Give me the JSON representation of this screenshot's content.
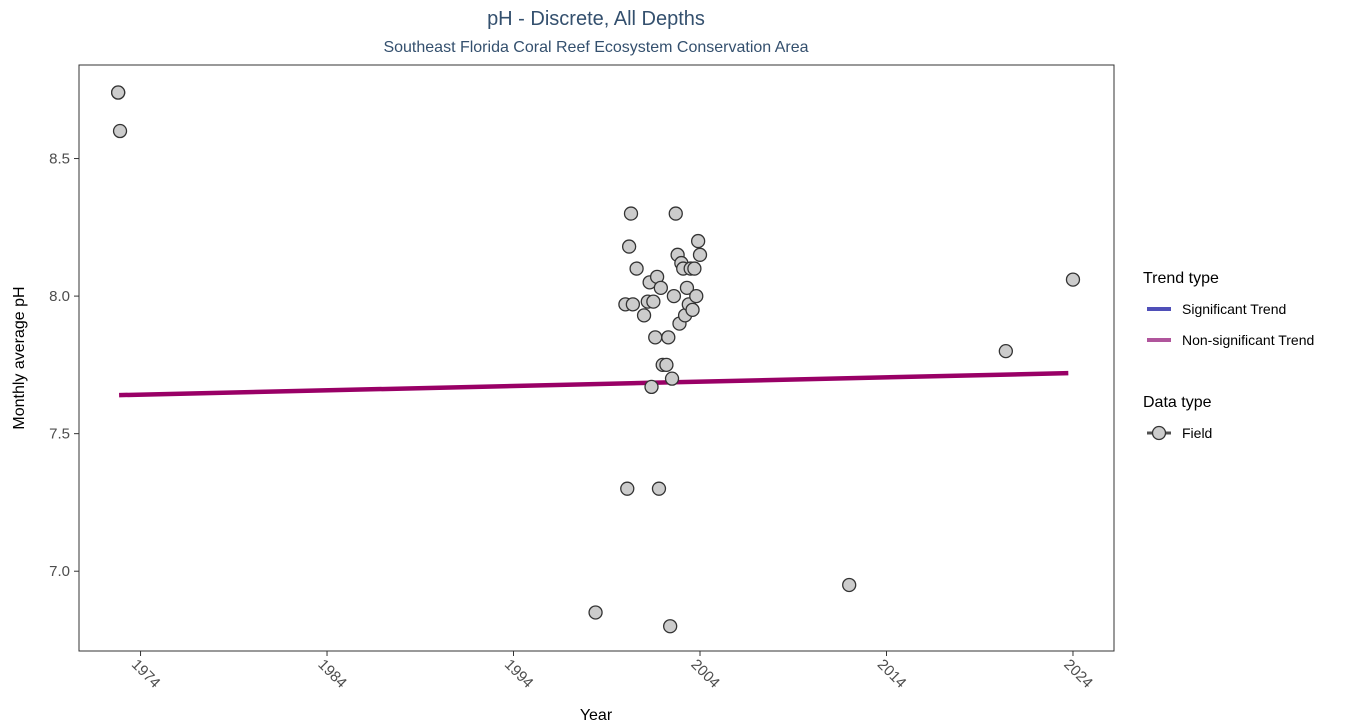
{
  "chart_data": {
    "type": "scatter",
    "title": "pH - Discrete, All Depths",
    "subtitle": "Southeast Florida Coral Reef Ecosystem Conservation Area",
    "xlabel": "Year",
    "ylabel": "Monthly average pH",
    "xlim": [
      1970.7,
      2026.2
    ],
    "ylim": [
      6.71,
      8.84
    ],
    "x_ticks": [
      1974,
      1984,
      1994,
      2004,
      2014,
      2024
    ],
    "x_tick_labels": [
      "1974",
      "1984",
      "1994",
      "2004",
      "2014",
      "2024"
    ],
    "y_ticks": [
      7.0,
      7.5,
      8.0,
      8.5
    ],
    "y_tick_labels": [
      "7.0",
      "7.5",
      "8.0",
      "8.5"
    ],
    "grid": false,
    "trend_line": {
      "type": "Non-significant Trend",
      "color": "#990066",
      "x": [
        1972.85,
        2023.75
      ],
      "y": [
        7.64,
        7.72
      ]
    },
    "points": {
      "series": "Field",
      "fill": "#cccccc",
      "stroke": "#333333",
      "x": [
        1972.8,
        1972.8,
        1972.9,
        1998.4,
        2000.0,
        2000.1,
        2000.2,
        2000.3,
        2000.4,
        2000.6,
        2001.0,
        2001.2,
        2001.3,
        2001.4,
        2001.5,
        2001.6,
        2001.7,
        2001.8,
        2001.9,
        2002.0,
        2002.2,
        2002.3,
        2002.4,
        2002.5,
        2002.6,
        2002.7,
        2002.8,
        2002.9,
        2003.0,
        2003.1,
        2003.2,
        2003.3,
        2003.4,
        2003.5,
        2003.6,
        2003.7,
        2003.8,
        2003.9,
        2004.0,
        2012.0,
        2020.4,
        2024.0
      ],
      "y": [
        8.74,
        8.74,
        8.6,
        6.85,
        7.97,
        7.3,
        8.18,
        8.3,
        7.97,
        8.1,
        7.93,
        7.98,
        8.05,
        7.67,
        7.98,
        7.85,
        8.07,
        7.3,
        8.03,
        7.75,
        7.75,
        7.85,
        6.8,
        7.7,
        8.0,
        8.3,
        8.15,
        7.9,
        8.12,
        8.1,
        7.93,
        8.03,
        7.97,
        8.1,
        7.95,
        8.1,
        8.0,
        8.2,
        8.15,
        6.95,
        7.8,
        8.06
      ]
    },
    "legend": {
      "placement": "right",
      "trend_title": "Trend type",
      "trend_items": [
        {
          "label": "Significant Trend",
          "color": "#4f4fb8"
        },
        {
          "label": "Non-significant Trend",
          "color": "#b0559c"
        }
      ],
      "data_title": "Data type",
      "data_items": [
        {
          "label": "Field",
          "color": "#333333"
        }
      ]
    }
  }
}
